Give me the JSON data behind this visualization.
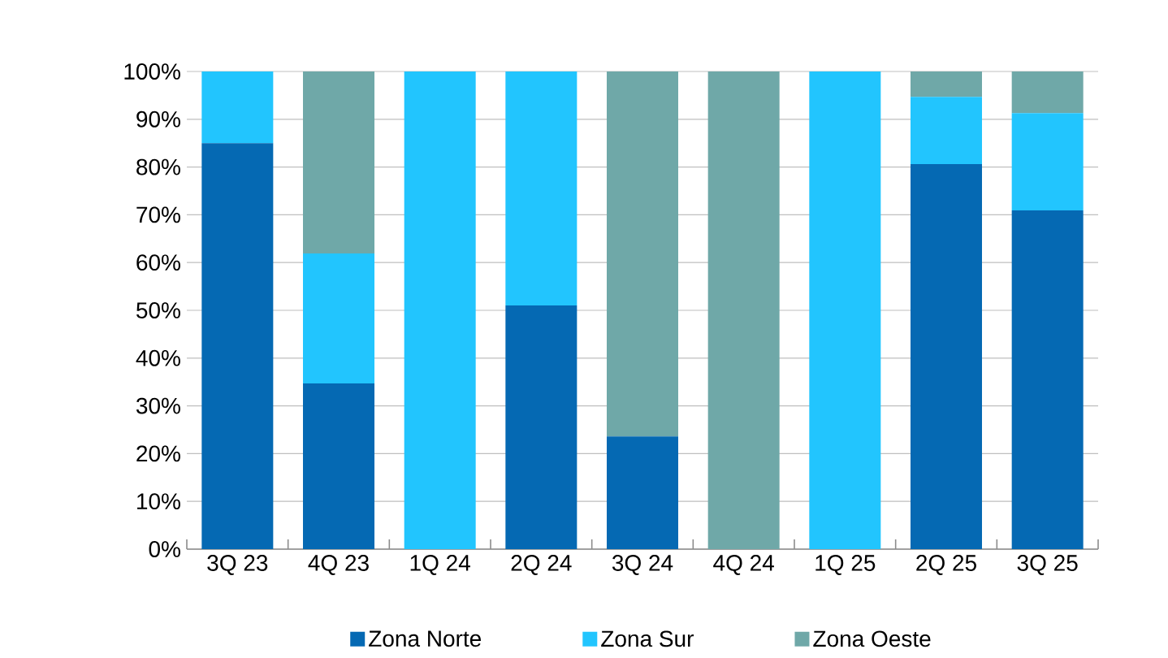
{
  "chart_data": {
    "type": "bar",
    "stacked": true,
    "categories": [
      "3Q 23",
      "4Q 23",
      "1Q 24",
      "2Q 24",
      "3Q 24",
      "4Q 24",
      "1Q 25",
      "2Q 25",
      "3Q 25"
    ],
    "series": [
      {
        "name": "Zona Norte",
        "color": "#0569b3",
        "values": [
          85.0,
          34.7,
          0,
          51.0,
          23.6,
          0,
          0,
          80.6,
          70.9
        ]
      },
      {
        "name": "Zona Sur",
        "color": "#22c5fe",
        "values": [
          15.0,
          27.2,
          100,
          49.0,
          0,
          0,
          100,
          14.1,
          20.4
        ]
      },
      {
        "name": "Zona Oeste",
        "color": "#6fa8a8",
        "values": [
          0,
          38.1,
          0,
          0,
          76.4,
          100,
          0,
          5.3,
          8.7
        ]
      }
    ],
    "ylim": [
      0,
      100
    ],
    "yticks": [
      {
        "value": 0,
        "label": "0%"
      },
      {
        "value": 10,
        "label": "10%"
      },
      {
        "value": 20,
        "label": "20%"
      },
      {
        "value": 30,
        "label": "30%"
      },
      {
        "value": 40,
        "label": "40%"
      },
      {
        "value": 50,
        "label": "50%"
      },
      {
        "value": 60,
        "label": "60%"
      },
      {
        "value": 70,
        "label": "70%"
      },
      {
        "value": 80,
        "label": "80%"
      },
      {
        "value": 90,
        "label": "90%"
      },
      {
        "value": 100,
        "label": "100%"
      }
    ],
    "grid": "y",
    "legend": "bottom"
  }
}
